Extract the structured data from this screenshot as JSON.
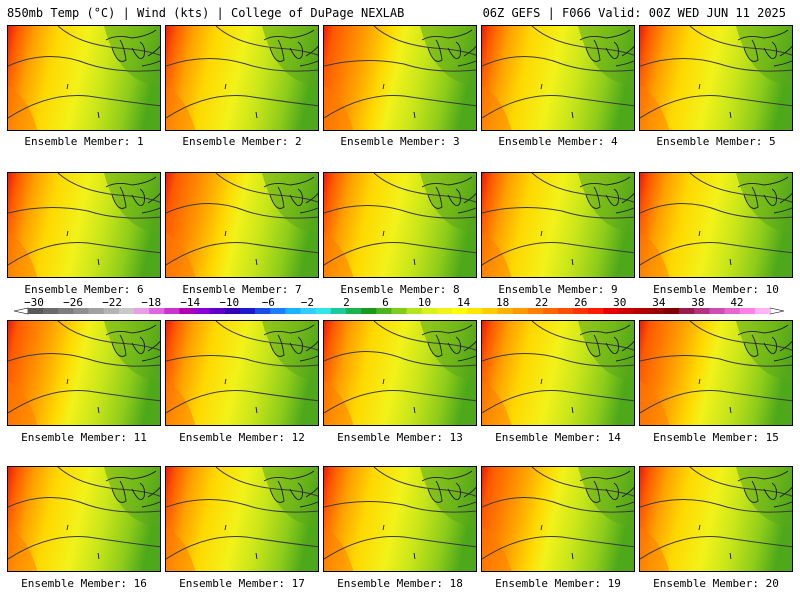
{
  "header": {
    "left": "850mb Temp (°C) | Wind (kts) | College of DuPage NEXLAB",
    "right": "06Z GEFS | F066 Valid: 00Z WED JUN 11 2025"
  },
  "panels": [
    {
      "label": "Ensemble Member: 1"
    },
    {
      "label": "Ensemble Member: 2"
    },
    {
      "label": "Ensemble Member: 3"
    },
    {
      "label": "Ensemble Member: 4"
    },
    {
      "label": "Ensemble Member: 5"
    },
    {
      "label": "Ensemble Member: 6"
    },
    {
      "label": "Ensemble Member: 7"
    },
    {
      "label": "Ensemble Member: 8"
    },
    {
      "label": "Ensemble Member: 9"
    },
    {
      "label": "Ensemble Member: 10"
    },
    {
      "label": "Ensemble Member: 11"
    },
    {
      "label": "Ensemble Member: 12"
    },
    {
      "label": "Ensemble Member: 13"
    },
    {
      "label": "Ensemble Member: 14"
    },
    {
      "label": "Ensemble Member: 15"
    },
    {
      "label": "Ensemble Member: 16"
    },
    {
      "label": "Ensemble Member: 17"
    },
    {
      "label": "Ensemble Member: 18"
    },
    {
      "label": "Ensemble Member: 19"
    },
    {
      "label": "Ensemble Member: 20"
    }
  ],
  "colorbar": {
    "tick_labels": [
      "-30",
      "-26",
      "-22",
      "-18",
      "-14",
      "-10",
      "-6",
      "-2",
      "2",
      "6",
      "10",
      "14",
      "18",
      "22",
      "26",
      "30",
      "34",
      "38",
      "42"
    ],
    "colors": [
      "#595959",
      "#6b6b6b",
      "#7d7d7d",
      "#8f8f8f",
      "#a1a1a1",
      "#b3b3b3",
      "#c8c8c8",
      "#e69ee6",
      "#e066e0",
      "#cc33cc",
      "#b300b3",
      "#8a00d9",
      "#5e00cc",
      "#3300b3",
      "#1a1acc",
      "#1a4de6",
      "#1a80ff",
      "#1ab3ff",
      "#33ccff",
      "#33e6e6",
      "#1acc99",
      "#1ab34d",
      "#1a991a",
      "#4db31a",
      "#80cc1a",
      "#b3e61a",
      "#d9f21a",
      "#f2f21a",
      "#ffff00",
      "#ffe600",
      "#ffcc00",
      "#ffb300",
      "#ff9900",
      "#ff8000",
      "#ff6600",
      "#ff4d00",
      "#ff3300",
      "#ff1a00",
      "#e60000",
      "#cc0000",
      "#b30000",
      "#990000",
      "#800000",
      "#991a4d",
      "#b3337f",
      "#cc4db3",
      "#e666cc",
      "#ff80e6",
      "#ffb3f2"
    ]
  }
}
